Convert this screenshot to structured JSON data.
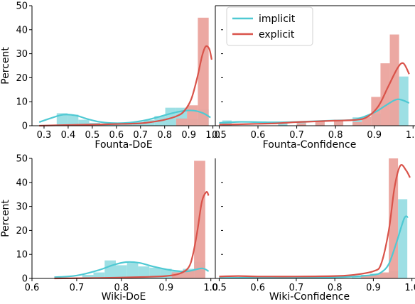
{
  "colors": {
    "implicit": "#4fc9d3",
    "explicit": "#d9534a",
    "implicit_bar": "#98dde3",
    "explicit_bar": "#eba39d"
  },
  "legend": {
    "placement": "upper-left of top-right panel",
    "entries": [
      "implicit",
      "explicit"
    ]
  },
  "chart_data": [
    {
      "id": "founta-doe",
      "type": "bar",
      "xlabel": "Founta-DoE",
      "ylabel": "Percent",
      "xlim": [
        0.25,
        1.01
      ],
      "ylim": [
        0,
        50
      ],
      "xticks": [
        "0.3",
        "0.4",
        "0.5",
        "0.6",
        "0.7",
        "0.8",
        "0.9",
        "1.0"
      ],
      "yticks": [
        "0",
        "10",
        "20",
        "30",
        "40",
        "50"
      ],
      "bar_width": 0.045,
      "series": [
        {
          "name": "implicit",
          "x": [
            0.375,
            0.42,
            0.465,
            0.51,
            0.555,
            0.6,
            0.645,
            0.69,
            0.735,
            0.78,
            0.825,
            0.87,
            0.915,
            0.96
          ],
          "values": [
            5.2,
            4.6,
            2.5,
            1.2,
            0.8,
            1.0,
            1.2,
            1.5,
            2.4,
            4.0,
            7.5,
            7.5,
            2.8,
            6.8
          ]
        },
        {
          "name": "explicit",
          "x": [
            0.87,
            0.915,
            0.96
          ],
          "values": [
            3.0,
            8.5,
            45.0
          ]
        }
      ],
      "kde": [
        {
          "name": "implicit",
          "x": [
            0.28,
            0.33,
            0.38,
            0.43,
            0.48,
            0.53,
            0.58,
            0.63,
            0.68,
            0.73,
            0.78,
            0.83,
            0.88,
            0.92,
            0.96,
            0.99
          ],
          "y": [
            1.5,
            3.2,
            4.6,
            4.3,
            2.8,
            1.6,
            1.1,
            1.1,
            1.6,
            2.5,
            3.8,
            5.2,
            6.2,
            6.3,
            5.2,
            3.4
          ]
        },
        {
          "name": "explicit",
          "x": [
            0.28,
            0.4,
            0.5,
            0.6,
            0.7,
            0.75,
            0.8,
            0.85,
            0.88,
            0.91,
            0.935,
            0.955,
            0.97,
            0.985,
            0.995
          ],
          "y": [
            0,
            0.3,
            0.5,
            0.7,
            1.0,
            1.6,
            2.5,
            4.0,
            6.0,
            11.0,
            20.0,
            29.0,
            33.0,
            32.0,
            27.5
          ]
        }
      ]
    },
    {
      "id": "founta-confidence",
      "type": "bar",
      "xlabel": "Founta-Confidence",
      "xlim": [
        0.49,
        1.005
      ],
      "ylim": [
        0,
        50
      ],
      "xticks": [
        "0.5",
        "0.6",
        "0.7",
        "0.8",
        "0.9",
        "1.0"
      ],
      "yticks": [],
      "bar_width": 0.024,
      "series": [
        {
          "name": "implicit",
          "x": [
            0.52,
            0.664,
            0.712,
            0.76,
            0.808,
            0.856,
            0.904,
            0.952,
            0.976
          ],
          "values": [
            2.2,
            1.0,
            1.5,
            2.0,
            2.5,
            3.5,
            5.0,
            6.5,
            20.5
          ]
        },
        {
          "name": "explicit",
          "x": [
            0.712,
            0.76,
            0.808,
            0.856,
            0.88,
            0.904,
            0.928,
            0.952
          ],
          "values": [
            1.0,
            1.8,
            2.5,
            1.5,
            3.8,
            12.0,
            26.0,
            38.0
          ]
        }
      ],
      "kde": [
        {
          "name": "implicit",
          "x": [
            0.5,
            0.55,
            0.6,
            0.65,
            0.7,
            0.75,
            0.8,
            0.85,
            0.9,
            0.93,
            0.96,
            0.99
          ],
          "y": [
            1.2,
            1.6,
            1.5,
            1.4,
            1.6,
            1.9,
            2.2,
            2.6,
            5.5,
            8.5,
            11.0,
            9.5
          ]
        },
        {
          "name": "explicit",
          "x": [
            0.5,
            0.55,
            0.6,
            0.65,
            0.7,
            0.75,
            0.8,
            0.85,
            0.88,
            0.91,
            0.935,
            0.96,
            0.975,
            0.99
          ],
          "y": [
            0.5,
            0.6,
            0.8,
            1.0,
            1.5,
            1.8,
            2.1,
            2.4,
            3.5,
            8.0,
            16.0,
            24.0,
            26.0,
            21.5
          ]
        }
      ]
    },
    {
      "id": "wiki-doe",
      "type": "bar",
      "xlabel": "Wiki-DoE",
      "ylabel": "Percent",
      "xlim": [
        0.6,
        1.01
      ],
      "ylim": [
        0,
        50
      ],
      "xticks": [
        "0.6",
        "0.7",
        "0.8",
        "0.9",
        "1.0"
      ],
      "yticks": [
        "0",
        "10",
        "20",
        "30",
        "40",
        "50"
      ],
      "bar_width": 0.025,
      "series": [
        {
          "name": "implicit",
          "x": [
            0.725,
            0.75,
            0.775,
            0.8,
            0.825,
            0.85,
            0.875,
            0.9,
            0.925,
            0.95,
            0.975
          ],
          "values": [
            1.5,
            2.5,
            7.5,
            5.5,
            6.5,
            5.0,
            4.5,
            4.0,
            3.0,
            4.0,
            7.0
          ]
        },
        {
          "name": "explicit",
          "x": [
            0.925,
            0.95,
            0.975
          ],
          "values": [
            2.5,
            3.5,
            49.0
          ]
        }
      ],
      "kde": [
        {
          "name": "implicit",
          "x": [
            0.65,
            0.7,
            0.75,
            0.78,
            0.81,
            0.84,
            0.87,
            0.9,
            0.93,
            0.95,
            0.98,
            0.995
          ],
          "y": [
            0.5,
            1.2,
            3.5,
            5.5,
            6.8,
            6.5,
            5.0,
            3.8,
            3.0,
            3.0,
            4.2,
            3.0
          ]
        },
        {
          "name": "explicit",
          "x": [
            0.65,
            0.75,
            0.85,
            0.9,
            0.93,
            0.95,
            0.96,
            0.97,
            0.98,
            0.99,
            0.995
          ],
          "y": [
            0,
            0.2,
            0.6,
            1.0,
            2.0,
            4.5,
            10.0,
            20.0,
            32.0,
            36.0,
            34.5
          ]
        }
      ]
    },
    {
      "id": "wiki-confidence",
      "type": "bar",
      "xlabel": "Wiki-Confidence",
      "xlim": [
        0.49,
        1.008
      ],
      "ylim": [
        0,
        50
      ],
      "xticks": [
        "0.5",
        "0.6",
        "0.7",
        "0.8",
        "0.9",
        "1.0"
      ],
      "yticks": [],
      "bar_width": 0.024,
      "series": [
        {
          "name": "implicit",
          "x": [
            0.856,
            0.88,
            0.904,
            0.928,
            0.952,
            0.976
          ],
          "values": [
            1.0,
            1.5,
            2.0,
            2.0,
            3.0,
            33.0
          ]
        },
        {
          "name": "explicit",
          "x": [
            0.88,
            0.904,
            0.928,
            0.952
          ],
          "values": [
            1.2,
            1.5,
            2.5,
            50.0
          ]
        }
      ],
      "kde": [
        {
          "name": "implicit",
          "x": [
            0.5,
            0.6,
            0.7,
            0.8,
            0.85,
            0.9,
            0.92,
            0.94,
            0.96,
            0.98,
            0.99
          ],
          "y": [
            0.2,
            0.3,
            0.3,
            0.5,
            0.8,
            1.5,
            2.5,
            6.0,
            15.0,
            25.0,
            25.5
          ]
        },
        {
          "name": "explicit",
          "x": [
            0.5,
            0.55,
            0.6,
            0.7,
            0.8,
            0.85,
            0.9,
            0.92,
            0.94,
            0.955,
            0.97,
            0.985,
            0.995
          ],
          "y": [
            0.8,
            1.0,
            0.8,
            0.8,
            1.0,
            1.5,
            3.0,
            6.0,
            20.0,
            38.0,
            47.0,
            45.0,
            42.0
          ]
        }
      ]
    }
  ]
}
